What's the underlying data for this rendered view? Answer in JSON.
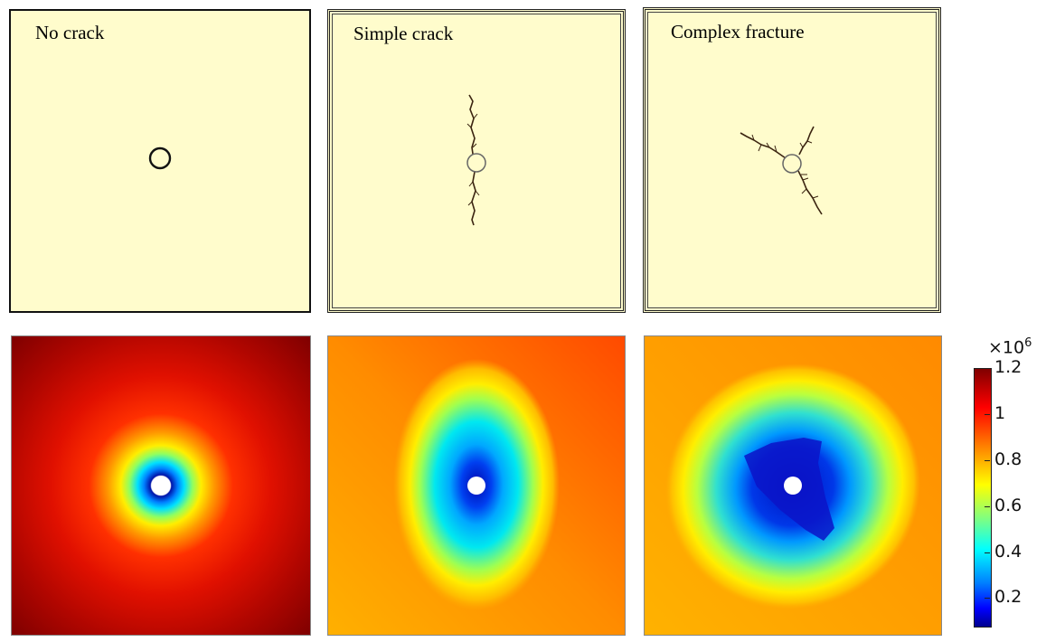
{
  "panels": {
    "no_crack": {
      "label": "No crack"
    },
    "simple_crack": {
      "label": "Simple crack"
    },
    "complex_fracture": {
      "label": "Complex fracture"
    }
  },
  "colorbar": {
    "multiplier": "×10",
    "exponent": "6",
    "ticks": [
      "1.2",
      "1",
      "0.8",
      "0.6",
      "0.4",
      "0.2"
    ],
    "colormap": "jet",
    "min": 0.08,
    "max": 1.2
  },
  "colors": {
    "panel_fill": "#fffccc",
    "crack": "#3b2410"
  }
}
